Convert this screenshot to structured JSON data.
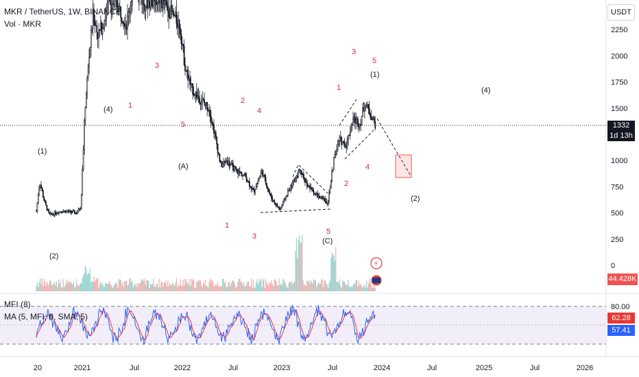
{
  "header": {
    "symbol": "MKR / TetherUS, 1W, BINANCE",
    "volume": "Vol · MKR",
    "mfi_label": "MFI (8)",
    "ma_label": "MA (5, MFI, 0, SMA, 5)"
  },
  "currency_button": "USDT",
  "price_badge": {
    "price": "1332",
    "countdown": "1d 13h"
  },
  "volume_badge": "44.428K",
  "mfi_badges": {
    "mfi": "62.28",
    "ma": "57.41"
  },
  "colors": {
    "up": "#26a69a",
    "down": "#ef5350",
    "mfi": "#2962ff",
    "ma": "#e53935",
    "wave_red": "#e0252f"
  },
  "chart_data": [
    {
      "type": "candlestick",
      "title": "MKR / TetherUS, 1W, BINANCE",
      "y_ticks": [
        2250,
        2000,
        1750,
        1500,
        1250,
        1000,
        750,
        500,
        250,
        0
      ],
      "x_ticks": [
        "20",
        "2021",
        "Jul",
        "2022",
        "Jul",
        "2023",
        "Jul",
        "2024",
        "Jul",
        "2025",
        "Jul",
        "2026"
      ],
      "current_price": 1332,
      "ohlc_approx": [
        {
          "t": "2020-10",
          "close": 550
        },
        {
          "t": "2020-12",
          "close": 530
        },
        {
          "t": "2021-01",
          "close": 1500
        },
        {
          "t": "2021-02",
          "close": 2300
        },
        {
          "t": "2021-05",
          "close": 2600
        },
        {
          "t": "2021-11",
          "close": 2400
        },
        {
          "t": "2022-02",
          "close": 1700
        },
        {
          "t": "2022-05",
          "close": 1300
        },
        {
          "t": "2022-06",
          "close": 900
        },
        {
          "t": "2022-10",
          "close": 700
        },
        {
          "t": "2022-12",
          "close": 540
        },
        {
          "t": "2023-02",
          "close": 900
        },
        {
          "t": "2023-06",
          "close": 600
        },
        {
          "t": "2023-07",
          "close": 1200
        },
        {
          "t": "2023-09",
          "close": 1450
        },
        {
          "t": "2023-11",
          "close": 1550
        },
        {
          "t": "2023-12",
          "close": 1332
        }
      ],
      "wave_labels_red": [
        "1",
        "3",
        "5",
        "1",
        "2",
        "4",
        "3",
        "1",
        "5",
        "1",
        "2",
        "3",
        "4",
        "5"
      ],
      "wave_labels_black": [
        "(1)",
        "(2)",
        "(4)",
        "(A)",
        "(C)",
        "(1)",
        "(4)",
        "(2)"
      ]
    },
    {
      "type": "bar",
      "title": "Vol · MKR",
      "last_value": "44.428K"
    },
    {
      "type": "line",
      "title": "MFI (8)",
      "series": [
        {
          "name": "MFI (8)",
          "last": 62.28
        },
        {
          "name": "MA (5, MFI, 0, SMA, 5)",
          "last": 57.41
        }
      ],
      "y_ticks": [
        80.0
      ]
    }
  ]
}
